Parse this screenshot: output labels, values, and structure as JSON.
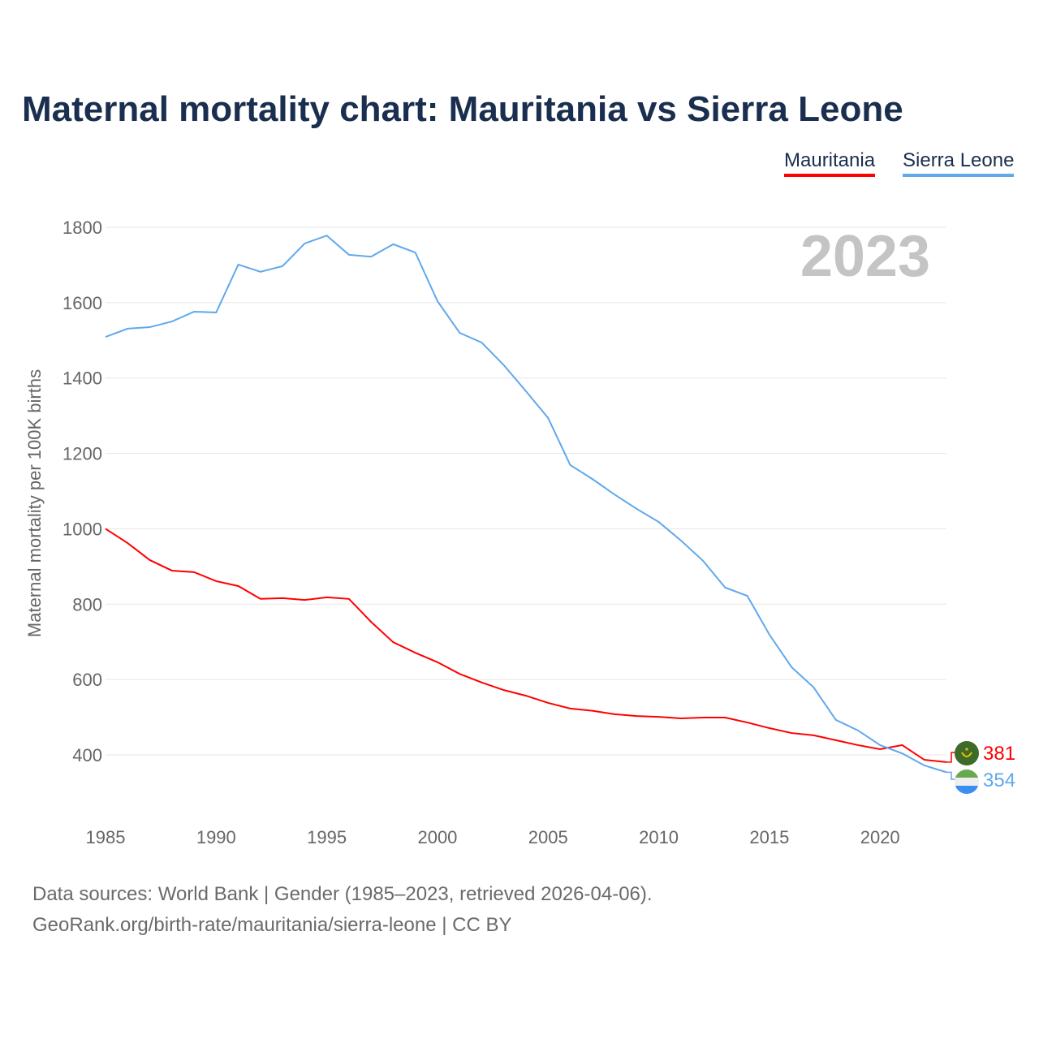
{
  "title": "Maternal mortality chart: Mauritania vs Sierra Leone",
  "legend": [
    "Mauritania",
    "Sierra Leone"
  ],
  "year_label": "2023",
  "sources": {
    "line1": "Data sources: World Bank | Gender (1985–2023, retrieved 2026-04-06).",
    "line2": "GeoRank.org/birth-rate/mauritania/sierra-leone | CC BY"
  },
  "chart_data": {
    "type": "line",
    "title": "Maternal mortality chart: Mauritania vs Sierra Leone",
    "xlabel": "",
    "ylabel": "Maternal mortality per 100K births",
    "xlim": [
      1985,
      2023
    ],
    "ylim": [
      300,
      1850
    ],
    "x_ticks": [
      1985,
      1990,
      1995,
      2000,
      2005,
      2010,
      2015,
      2020
    ],
    "y_ticks": [
      400,
      600,
      800,
      1000,
      1200,
      1400,
      1600,
      1800
    ],
    "grid": true,
    "legend_position": "top-right",
    "x": [
      1985,
      1986,
      1987,
      1988,
      1989,
      1990,
      1991,
      1992,
      1993,
      1994,
      1995,
      1996,
      1997,
      1998,
      1999,
      2000,
      2001,
      2002,
      2003,
      2004,
      2005,
      2006,
      2007,
      2008,
      2009,
      2010,
      2011,
      2012,
      2013,
      2014,
      2015,
      2016,
      2017,
      2018,
      2019,
      2020,
      2021,
      2022,
      2023
    ],
    "series": [
      {
        "name": "Mauritania",
        "color": "#ff0000",
        "end_label": "381",
        "values": [
          1000,
          962,
          917,
          889,
          885,
          861,
          848,
          814,
          816,
          811,
          818,
          814,
          753,
          699,
          671,
          646,
          615,
          592,
          572,
          557,
          538,
          523,
          517,
          508,
          503,
          501,
          497,
          499,
          499,
          486,
          471,
          458,
          452,
          439,
          426,
          415,
          426,
          387,
          381
        ]
      },
      {
        "name": "Sierra Leone",
        "color": "#60a8ec",
        "end_label": "354",
        "values": [
          1509,
          1531,
          1535,
          1550,
          1576,
          1574,
          1701,
          1682,
          1697,
          1757,
          1778,
          1727,
          1722,
          1755,
          1733,
          1604,
          1520,
          1494,
          1434,
          1365,
          1294,
          1169,
          1132,
          1091,
          1053,
          1018,
          969,
          915,
          844,
          822,
          719,
          633,
          579,
          493,
          465,
          426,
          404,
          372,
          354
        ]
      }
    ]
  }
}
